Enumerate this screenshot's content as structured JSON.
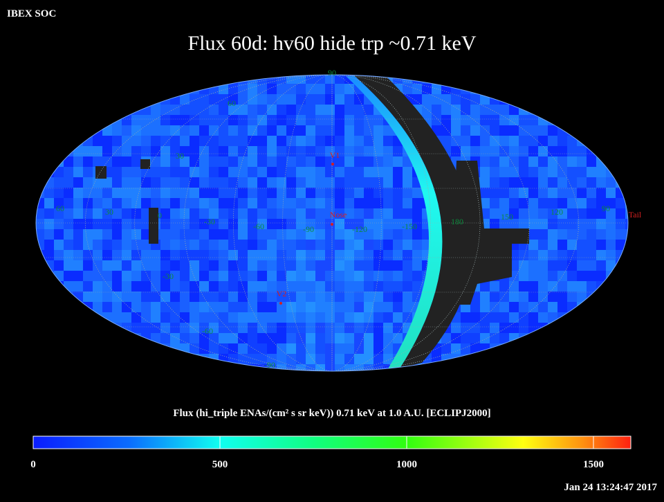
{
  "header": {
    "org": "IBEX SOC",
    "title": "Flux   60d: hv60 hide trp ~0.71 keV"
  },
  "map": {
    "grid_labels": [
      "90",
      "60",
      "30",
      "60",
      "30",
      "0",
      "-30",
      "-60",
      "-90",
      "-120",
      "-150",
      "180",
      "150",
      "120",
      "90",
      "-30",
      "-60",
      "-90"
    ],
    "markers": [
      "V1",
      "Nose",
      "V2",
      "Tail"
    ]
  },
  "colorbar": {
    "label": "Flux (hi_triple ENAs/(cm² s sr keV))  0.71 keV at 1.0 A.U. [ECLIPJ2000]",
    "range": [
      0,
      1600
    ],
    "ticks": [
      0,
      500,
      1000,
      1500
    ]
  },
  "footer": {
    "timestamp": "Jan 24 13:24:47 2017"
  }
}
